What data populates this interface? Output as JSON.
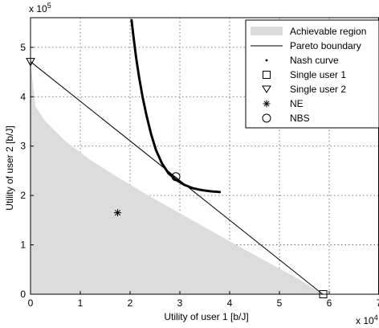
{
  "chart_data": {
    "type": "line",
    "xlabel": "Utility of user 1 [b/J]",
    "ylabel": "Utility of user 2 [b/J]",
    "x_multiplier": "x 10",
    "x_exponent": "4",
    "y_multiplier": "x 10",
    "y_exponent": "5",
    "xlim": [
      0,
      70000
    ],
    "ylim": [
      0,
      560000
    ],
    "xticks": [
      0,
      10000,
      20000,
      30000,
      40000,
      50000,
      60000,
      70000
    ],
    "xtick_labels": [
      "0",
      "1",
      "2",
      "3",
      "4",
      "5",
      "6",
      "7"
    ],
    "yticks": [
      0,
      100000,
      200000,
      300000,
      400000,
      500000
    ],
    "ytick_labels": [
      "0",
      "1",
      "2",
      "3",
      "4",
      "5"
    ],
    "grid": true,
    "legend_position": "top-right",
    "legend": [
      "Achievable region",
      "Pareto boundary",
      "Nash curve",
      "Single user 1",
      "Single user 2",
      "NE",
      "NBS"
    ],
    "achievable_region": {
      "x": [
        0,
        0,
        1000,
        3000,
        7000,
        12000,
        18000,
        24000,
        30000,
        36000,
        42000,
        48000,
        54000,
        58700,
        0
      ],
      "y": [
        0,
        470000,
        380000,
        350000,
        310000,
        272000,
        234000,
        198000,
        164000,
        130000,
        96000,
        63000,
        30000,
        0,
        0
      ]
    },
    "pareto_boundary": {
      "x": [
        0,
        58700
      ],
      "y": [
        471000,
        0
      ]
    },
    "nash_curve": {
      "x": [
        20300,
        20700,
        21200,
        21800,
        22500,
        23300,
        24200,
        25200,
        26400,
        27700,
        29200,
        30800,
        32500,
        34300,
        36100,
        38000
      ],
      "y": [
        555000,
        520000,
        480000,
        440000,
        400000,
        362000,
        325000,
        292000,
        265000,
        245000,
        232000,
        222000,
        215000,
        211000,
        208500,
        207000
      ]
    },
    "single_user_1": {
      "x": 58800,
      "y": 0
    },
    "single_user_2": {
      "x": 0,
      "y": 471000
    },
    "ne": {
      "x": 17500,
      "y": 165000
    },
    "nbs": {
      "x": 29200,
      "y": 238000
    }
  }
}
